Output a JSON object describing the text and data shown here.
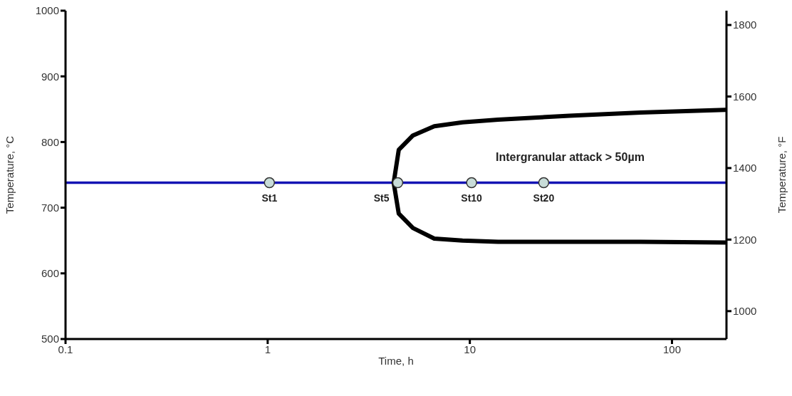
{
  "chart_data": {
    "type": "line",
    "xlabel": "Time, h",
    "ylabel": "Temperature, °C",
    "y2label": "Temperature, °F",
    "log": "x",
    "xlim": [
      0.1,
      186
    ],
    "xticks": [
      0.1,
      1,
      10,
      100
    ],
    "ylim": [
      500,
      1000
    ],
    "yticks": [
      500,
      600,
      700,
      800,
      900,
      1000
    ],
    "y2lim": [
      922,
      1840
    ],
    "y2ticks": [
      1000,
      1200,
      1400,
      1600,
      1800
    ],
    "grid": false,
    "legend": false,
    "line_style": "solid",
    "series": [
      {
        "color": "#1414b4",
        "x": [
          0.1,
          186
        ],
        "values": [
          738,
          738
        ],
        "marker": "none"
      },
      {
        "color": "#000000",
        "x": [
          186,
          70,
          31.1,
          13.8,
          9.2,
          6.67,
          5.23,
          4.45,
          4.2,
          4.45,
          5.23,
          6.67,
          9.2,
          13.8,
          31.1,
          70,
          186
        ],
        "values": [
          849,
          845,
          840,
          834,
          830,
          824,
          810,
          788,
          738,
          691,
          669,
          653,
          650,
          648,
          648,
          648,
          647
        ],
        "marker": "none"
      },
      {
        "type": "scatter",
        "color": "#c8dcd8",
        "x": [
          1.02,
          4.4,
          10.2,
          23.2
        ],
        "values": [
          738,
          738,
          738,
          738
        ],
        "value_labels": [
          "St1",
          "St5",
          "St10",
          "St20"
        ],
        "marker": "circle"
      }
    ],
    "annotations": [
      "Intergranular attack > 50µm"
    ]
  }
}
